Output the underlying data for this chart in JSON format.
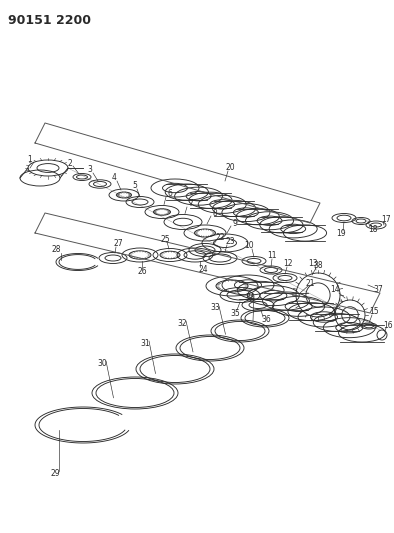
{
  "title": "90151 2200",
  "background_color": "#ffffff",
  "line_color": "#2a2a2a",
  "title_fontsize": 9,
  "label_fontsize": 5.5,
  "lw": 0.65
}
